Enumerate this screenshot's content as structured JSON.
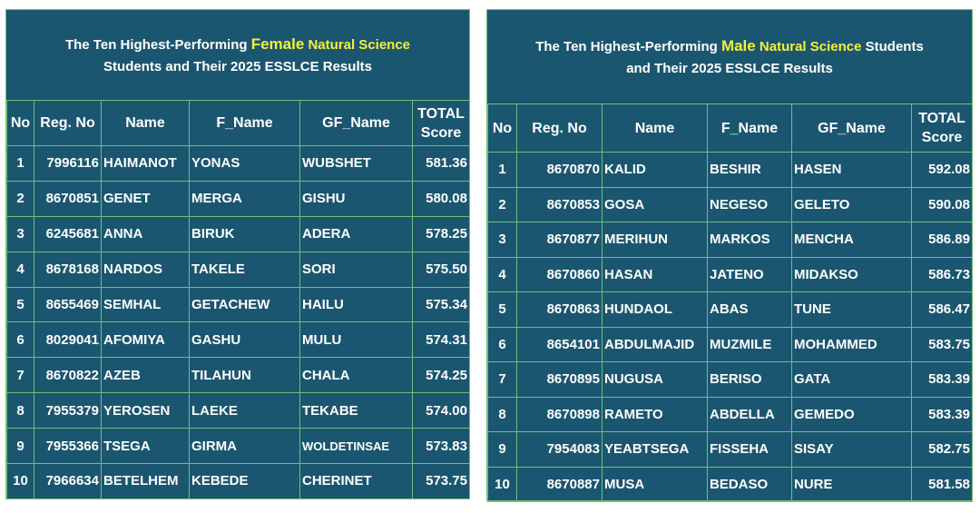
{
  "female": {
    "title_pre": "The Ten Highest-Performing ",
    "title_hl1": "Female",
    "title_hl2": " Natural Science",
    "title_line2": "Students and Their 2025 ESSLCE Results",
    "headers": {
      "no": "No",
      "reg": "Reg.  No",
      "name": "Name",
      "fname": "F_Name",
      "gfname": "GF_Name",
      "score1": "TOTAL",
      "score2": "Score"
    },
    "rows": [
      {
        "no": "1",
        "reg": "7996116",
        "name": "HAIMANOT",
        "fname": "YONAS",
        "gfname": "WUBSHET",
        "score": "581.36"
      },
      {
        "no": "2",
        "reg": "8670851",
        "name": "GENET",
        "fname": "MERGA",
        "gfname": "GISHU",
        "score": "580.08"
      },
      {
        "no": "3",
        "reg": "6245681",
        "name": "ANNA",
        "fname": "BIRUK",
        "gfname": "ADERA",
        "score": "578.25"
      },
      {
        "no": "4",
        "reg": "8678168",
        "name": "NARDOS",
        "fname": "TAKELE",
        "gfname": "SORI",
        "score": "575.50"
      },
      {
        "no": "5",
        "reg": "8655469",
        "name": "SEMHAL",
        "fname": "GETACHEW",
        "gfname": "HAILU",
        "score": "575.34"
      },
      {
        "no": "6",
        "reg": "8029041",
        "name": "AFOMIYA",
        "fname": "GASHU",
        "gfname": "MULU",
        "score": "574.31"
      },
      {
        "no": "7",
        "reg": "8670822",
        "name": "AZEB",
        "fname": "TILAHUN",
        "gfname": "CHALA",
        "score": "574.25"
      },
      {
        "no": "8",
        "reg": "7955379",
        "name": "YEROSEN",
        "fname": "LAEKE",
        "gfname": "TEKABE",
        "score": "574.00"
      },
      {
        "no": "9",
        "reg": "7955366",
        "name": "TSEGA",
        "fname": "GIRMA",
        "gfname": "WOLDETINSAE",
        "score": "573.83"
      },
      {
        "no": "10",
        "reg": "7966634",
        "name": "BETELHEM",
        "fname": "KEBEDE",
        "gfname": "CHERINET",
        "score": "573.75"
      }
    ]
  },
  "male": {
    "title_pre": "The Ten Highest-Performing ",
    "title_hl1": "Male",
    "title_hl2": " Natural  Science",
    "title_post": " Students",
    "title_line2": "and Their 2025 ESSLCE Results",
    "headers": {
      "no": "No",
      "reg": "Reg. No",
      "name": "Name",
      "fname": "F_Name",
      "gfname": "GF_Name",
      "score1": "TOTAL",
      "score2": "Score"
    },
    "rows": [
      {
        "no": "1",
        "reg": "8670870",
        "name": "KALID",
        "fname": "BESHIR",
        "gfname": "HASEN",
        "score": "592.08"
      },
      {
        "no": "2",
        "reg": "8670853",
        "name": "GOSA",
        "fname": "NEGESO",
        "gfname": "GELETO",
        "score": "590.08"
      },
      {
        "no": "3",
        "reg": "8670877",
        "name": "MERIHUN",
        "fname": "MARKOS",
        "gfname": "MENCHA",
        "score": "586.89"
      },
      {
        "no": "4",
        "reg": "8670860",
        "name": "HASAN",
        "fname": "JATENO",
        "gfname": "MIDAKSO",
        "score": "586.73"
      },
      {
        "no": "5",
        "reg": "8670863",
        "name": "HUNDAOL",
        "fname": "ABAS",
        "gfname": "TUNE",
        "score": "586.47"
      },
      {
        "no": "6",
        "reg": "8654101",
        "name": "ABDULMAJID",
        "fname": "MUZMILE",
        "gfname": "MOHAMMED",
        "score": "583.75"
      },
      {
        "no": "7",
        "reg": "8670895",
        "name": "NUGUSA",
        "fname": "BERISO",
        "gfname": "GATA",
        "score": "583.39"
      },
      {
        "no": "8",
        "reg": "8670898",
        "name": "RAMETO",
        "fname": "ABDELLA",
        "gfname": "GEMEDO",
        "score": "583.39"
      },
      {
        "no": "9",
        "reg": "7954083",
        "name": "YEABTSEGA",
        "fname": "FISSEHA",
        "gfname": "SISAY",
        "score": "582.75"
      },
      {
        "no": "10",
        "reg": "8670887",
        "name": "MUSA",
        "fname": "BEDASO",
        "gfname": "NURE",
        "score": "581.58"
      }
    ]
  }
}
